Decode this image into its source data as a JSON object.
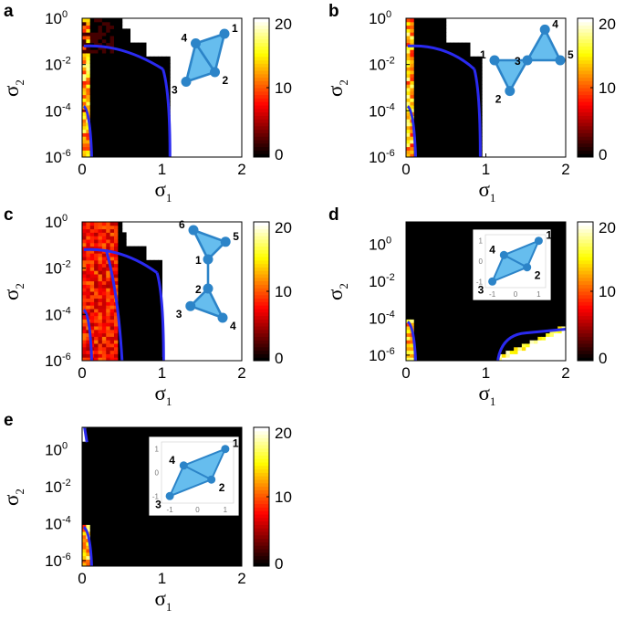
{
  "chart_data": [
    {
      "type": "heatmap",
      "panel": "a",
      "xlabel": "σ",
      "xlabel_sub": "1",
      "ylabel": "σ",
      "ylabel_sub": "2",
      "x_ticks": [
        "0",
        "1",
        "2"
      ],
      "y_ticks": [
        "10",
        "10",
        "10",
        "10"
      ],
      "y_exps": [
        "0",
        "-2",
        "-4",
        "-6"
      ],
      "xlim": [
        0,
        2
      ],
      "ylim_log10": [
        -6,
        0
      ],
      "yscale": "log",
      "colorbar": {
        "ticks": [
          "0",
          "10",
          "20"
        ],
        "range": [
          0,
          20
        ]
      },
      "graph": {
        "nodes": [
          {
            "id": "1",
            "x": 1,
            "y": 1
          },
          {
            "id": "2",
            "x": 0.5,
            "y": -1
          },
          {
            "id": "3",
            "x": -1,
            "y": -1.5
          },
          {
            "id": "4",
            "x": -0.5,
            "y": 0.5
          }
        ],
        "edges": [
          [
            "1",
            "2"
          ],
          [
            "1",
            "4"
          ],
          [
            "2",
            "3"
          ],
          [
            "3",
            "4"
          ],
          [
            "2",
            "4"
          ]
        ],
        "triangles": [
          [
            "1",
            "2",
            "4"
          ],
          [
            "2",
            "3",
            "4"
          ]
        ],
        "inset_box": false
      }
    },
    {
      "type": "heatmap",
      "panel": "b",
      "xlabel": "σ",
      "xlabel_sub": "1",
      "ylabel": "σ",
      "ylabel_sub": "2",
      "x_ticks": [
        "0",
        "1",
        "2"
      ],
      "y_ticks": [
        "10",
        "10",
        "10",
        "10"
      ],
      "y_exps": [
        "0",
        "-2",
        "-4",
        "-6"
      ],
      "xlim": [
        0,
        2
      ],
      "ylim_log10": [
        -6,
        0
      ],
      "yscale": "log",
      "colorbar": {
        "ticks": [
          "0",
          "10",
          "20"
        ],
        "range": [
          0,
          20
        ]
      },
      "graph": {
        "nodes": [
          {
            "id": "1",
            "x": -1.5,
            "y": 0
          },
          {
            "id": "2",
            "x": -0.8,
            "y": -1.4
          },
          {
            "id": "3",
            "x": 0,
            "y": 0
          },
          {
            "id": "4",
            "x": 0.8,
            "y": 1.4
          },
          {
            "id": "5",
            "x": 1.5,
            "y": 0
          }
        ],
        "edges": [
          [
            "1",
            "2"
          ],
          [
            "1",
            "3"
          ],
          [
            "2",
            "3"
          ],
          [
            "3",
            "4"
          ],
          [
            "3",
            "5"
          ],
          [
            "4",
            "5"
          ]
        ],
        "triangles": [
          [
            "1",
            "2",
            "3"
          ],
          [
            "3",
            "4",
            "5"
          ]
        ],
        "inset_box": false
      }
    },
    {
      "type": "heatmap",
      "panel": "c",
      "xlabel": "σ",
      "xlabel_sub": "1",
      "ylabel": "σ",
      "ylabel_sub": "2",
      "x_ticks": [
        "0",
        "1",
        "2"
      ],
      "y_ticks": [
        "10",
        "10",
        "10",
        "10"
      ],
      "y_exps": [
        "0",
        "-2",
        "-4",
        "-6"
      ],
      "xlim": [
        0,
        2
      ],
      "ylim_log10": [
        -6,
        0
      ],
      "yscale": "log",
      "colorbar": {
        "ticks": [
          "0",
          "10",
          "20"
        ],
        "range": [
          0,
          20
        ]
      },
      "graph": {
        "nodes": [
          {
            "id": "1",
            "x": 0,
            "y": 1
          },
          {
            "id": "2",
            "x": 0,
            "y": -1
          },
          {
            "id": "3",
            "x": -1.2,
            "y": -2.2
          },
          {
            "id": "4",
            "x": 1,
            "y": -3
          },
          {
            "id": "5",
            "x": 1.2,
            "y": 2.2
          },
          {
            "id": "6",
            "x": -1,
            "y": 3
          }
        ],
        "edges": [
          [
            "1",
            "5"
          ],
          [
            "1",
            "6"
          ],
          [
            "5",
            "6"
          ],
          [
            "1",
            "2"
          ],
          [
            "2",
            "3"
          ],
          [
            "2",
            "4"
          ],
          [
            "3",
            "4"
          ]
        ],
        "triangles": [
          [
            "1",
            "5",
            "6"
          ],
          [
            "2",
            "3",
            "4"
          ]
        ],
        "inset_box": false
      }
    },
    {
      "type": "heatmap",
      "panel": "d",
      "xlabel": "σ",
      "xlabel_sub": "1",
      "ylabel": "σ",
      "ylabel_sub": "2",
      "x_ticks": [
        "0",
        "1",
        "2"
      ],
      "y_ticks": [
        "10",
        "10",
        "10",
        "10"
      ],
      "y_exps": [
        "0",
        "-2",
        "-4",
        "-6"
      ],
      "xlim": [
        0,
        2
      ],
      "ylim_log10": [
        -6.3,
        1.2
      ],
      "yscale": "log",
      "colorbar": {
        "ticks": [
          "0",
          "10",
          "20"
        ],
        "range": [
          0,
          20
        ]
      },
      "graph": {
        "nodes": [
          {
            "id": "1",
            "x": 1,
            "y": 1
          },
          {
            "id": "2",
            "x": 0.5,
            "y": -0.3
          },
          {
            "id": "3",
            "x": -1,
            "y": -1
          },
          {
            "id": "4",
            "x": -0.5,
            "y": 0.3
          }
        ],
        "edges": [
          [
            "1",
            "2"
          ],
          [
            "1",
            "4"
          ],
          [
            "2",
            "3"
          ],
          [
            "3",
            "4"
          ],
          [
            "2",
            "4"
          ]
        ],
        "triangles": [
          [
            "1",
            "2",
            "4"
          ],
          [
            "2",
            "3",
            "4"
          ]
        ],
        "inset_box": true,
        "inset_ticks": [
          "-1",
          "0",
          "1"
        ]
      }
    },
    {
      "type": "heatmap",
      "panel": "e",
      "xlabel": "σ",
      "xlabel_sub": "1",
      "ylabel": "σ",
      "ylabel_sub": "2",
      "x_ticks": [
        "0",
        "1",
        "2"
      ],
      "y_ticks": [
        "10",
        "10",
        "10",
        "10"
      ],
      "y_exps": [
        "0",
        "-2",
        "-4",
        "-6"
      ],
      "xlim": [
        0,
        2
      ],
      "ylim_log10": [
        -6.3,
        1.2
      ],
      "yscale": "log",
      "colorbar": {
        "ticks": [
          "0",
          "10",
          "20"
        ],
        "range": [
          0,
          20
        ]
      },
      "graph": {
        "nodes": [
          {
            "id": "1",
            "x": 1,
            "y": 1
          },
          {
            "id": "2",
            "x": 0.5,
            "y": -0.3
          },
          {
            "id": "3",
            "x": -1,
            "y": -1
          },
          {
            "id": "4",
            "x": -0.5,
            "y": 0.3
          }
        ],
        "edges": [
          [
            "1",
            "2"
          ],
          [
            "1",
            "4"
          ],
          [
            "2",
            "3"
          ],
          [
            "3",
            "4"
          ],
          [
            "2",
            "4"
          ]
        ],
        "triangles": [
          [
            "1",
            "2",
            "4"
          ],
          [
            "2",
            "3",
            "4"
          ]
        ],
        "inset_box": true,
        "inset_ticks": [
          "-1",
          "0",
          "1"
        ]
      }
    }
  ],
  "colors": {
    "boundary": "#2a2af0",
    "node": "#2c84c8",
    "triangle_fill": "#66bdee",
    "background_low": "#000000",
    "background_high": "#ffffff"
  }
}
